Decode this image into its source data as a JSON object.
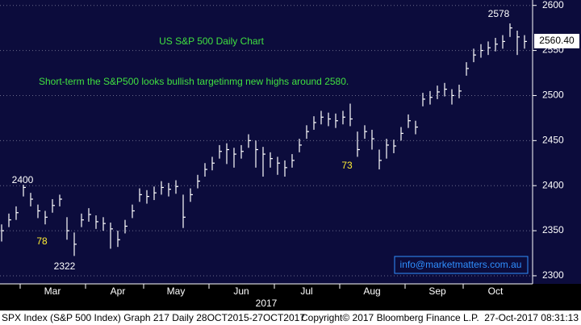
{
  "chart_data": {
    "type": "ohlc",
    "title": "US S&P 500 Daily Chart",
    "subtitle": "Short-term the S&P500 looks bullish targetinmg new highs around 2580.",
    "categories": [
      null,
      null,
      null,
      null,
      null,
      null,
      null,
      "Mar",
      null,
      null,
      null,
      null,
      null,
      null,
      null,
      null,
      "Apr",
      null,
      null,
      null,
      null,
      null,
      null,
      null,
      "May",
      null,
      null,
      null,
      null,
      null,
      null,
      null,
      null,
      "Jun",
      null,
      null,
      null,
      null,
      null,
      null,
      null,
      null,
      "Jul",
      null,
      null,
      null,
      null,
      null,
      null,
      null,
      null,
      "Aug",
      null,
      null,
      null,
      null,
      null,
      null,
      null,
      null,
      "Sep",
      null,
      null,
      null,
      null,
      null,
      null,
      null,
      "Oct",
      null,
      null,
      null,
      null
    ],
    "series": [
      {
        "name": "SPX Index",
        "color": "#ffffff",
        "high": [
          2357,
          2369,
          2377,
          2401,
          2392,
          2379,
          2372,
          2385,
          2390,
          2365,
          2348,
          2369,
          2375,
          2367,
          2365,
          2359,
          2350,
          2362,
          2379,
          2397,
          2395,
          2399,
          2405,
          2403,
          2406,
          2390,
          2397,
          2412,
          2425,
          2432,
          2445,
          2447,
          2442,
          2445,
          2457,
          2450,
          2443,
          2437,
          2432,
          2428,
          2435,
          2452,
          2467,
          2477,
          2483,
          2481,
          2480,
          2483,
          2491,
          2460,
          2467,
          2462,
          2440,
          2452,
          2451,
          2465,
          2479,
          2472,
          2503,
          2505,
          2511,
          2514,
          2507,
          2512,
          2537,
          2552,
          2557,
          2560,
          2564,
          2567,
          2580,
          2572,
          2567
        ],
        "low": [
          2338,
          2354,
          2362,
          2388,
          2377,
          2364,
          2357,
          2370,
          2377,
          2340,
          2322,
          2354,
          2360,
          2352,
          2350,
          2330,
          2332,
          2347,
          2364,
          2382,
          2380,
          2384,
          2390,
          2388,
          2391,
          2353,
          2382,
          2397,
          2410,
          2417,
          2430,
          2424,
          2420,
          2430,
          2442,
          2420,
          2410,
          2420,
          2412,
          2410,
          2420,
          2437,
          2452,
          2462,
          2468,
          2466,
          2464,
          2468,
          2466,
          2432,
          2452,
          2440,
          2418,
          2430,
          2436,
          2450,
          2464,
          2457,
          2488,
          2490,
          2496,
          2499,
          2490,
          2497,
          2522,
          2537,
          2542,
          2545,
          2549,
          2552,
          2565,
          2545,
          2552
        ],
        "close": [
          2350,
          2362,
          2370,
          2398,
          2385,
          2372,
          2365,
          2378,
          2385,
          2350,
          2335,
          2362,
          2368,
          2360,
          2358,
          2352,
          2340,
          2355,
          2372,
          2390,
          2388,
          2392,
          2398,
          2396,
          2399,
          2365,
          2390,
          2405,
          2418,
          2425,
          2438,
          2440,
          2435,
          2438,
          2450,
          2440,
          2435,
          2430,
          2425,
          2420,
          2428,
          2445,
          2460,
          2470,
          2476,
          2474,
          2472,
          2476,
          2474,
          2440,
          2460,
          2452,
          2428,
          2445,
          2444,
          2458,
          2472,
          2465,
          2496,
          2498,
          2504,
          2507,
          2500,
          2505,
          2530,
          2545,
          2550,
          2553,
          2557,
          2560,
          2575,
          2565,
          2560
        ]
      }
    ],
    "ylim": [
      2291,
      2606
    ],
    "yticks": [
      2300,
      2350,
      2400,
      2450,
      2500,
      2550,
      2600
    ],
    "grid": true,
    "last_price": {
      "value": 2560.4,
      "label": "2560.40"
    },
    "x_axis_label": "2017",
    "annotations": [
      "2400",
      "78",
      "2322",
      "73",
      "2578"
    ],
    "watermark": "info@marketmatters.com.au",
    "footer": [
      "SPX Index (S&P 500 Index) Graph 217  Daily 28OCT2015-27OCT2017",
      "Copyright© 2017 Bloomberg Finance L.P.",
      "27-Oct-2017 08:31:13"
    ]
  }
}
